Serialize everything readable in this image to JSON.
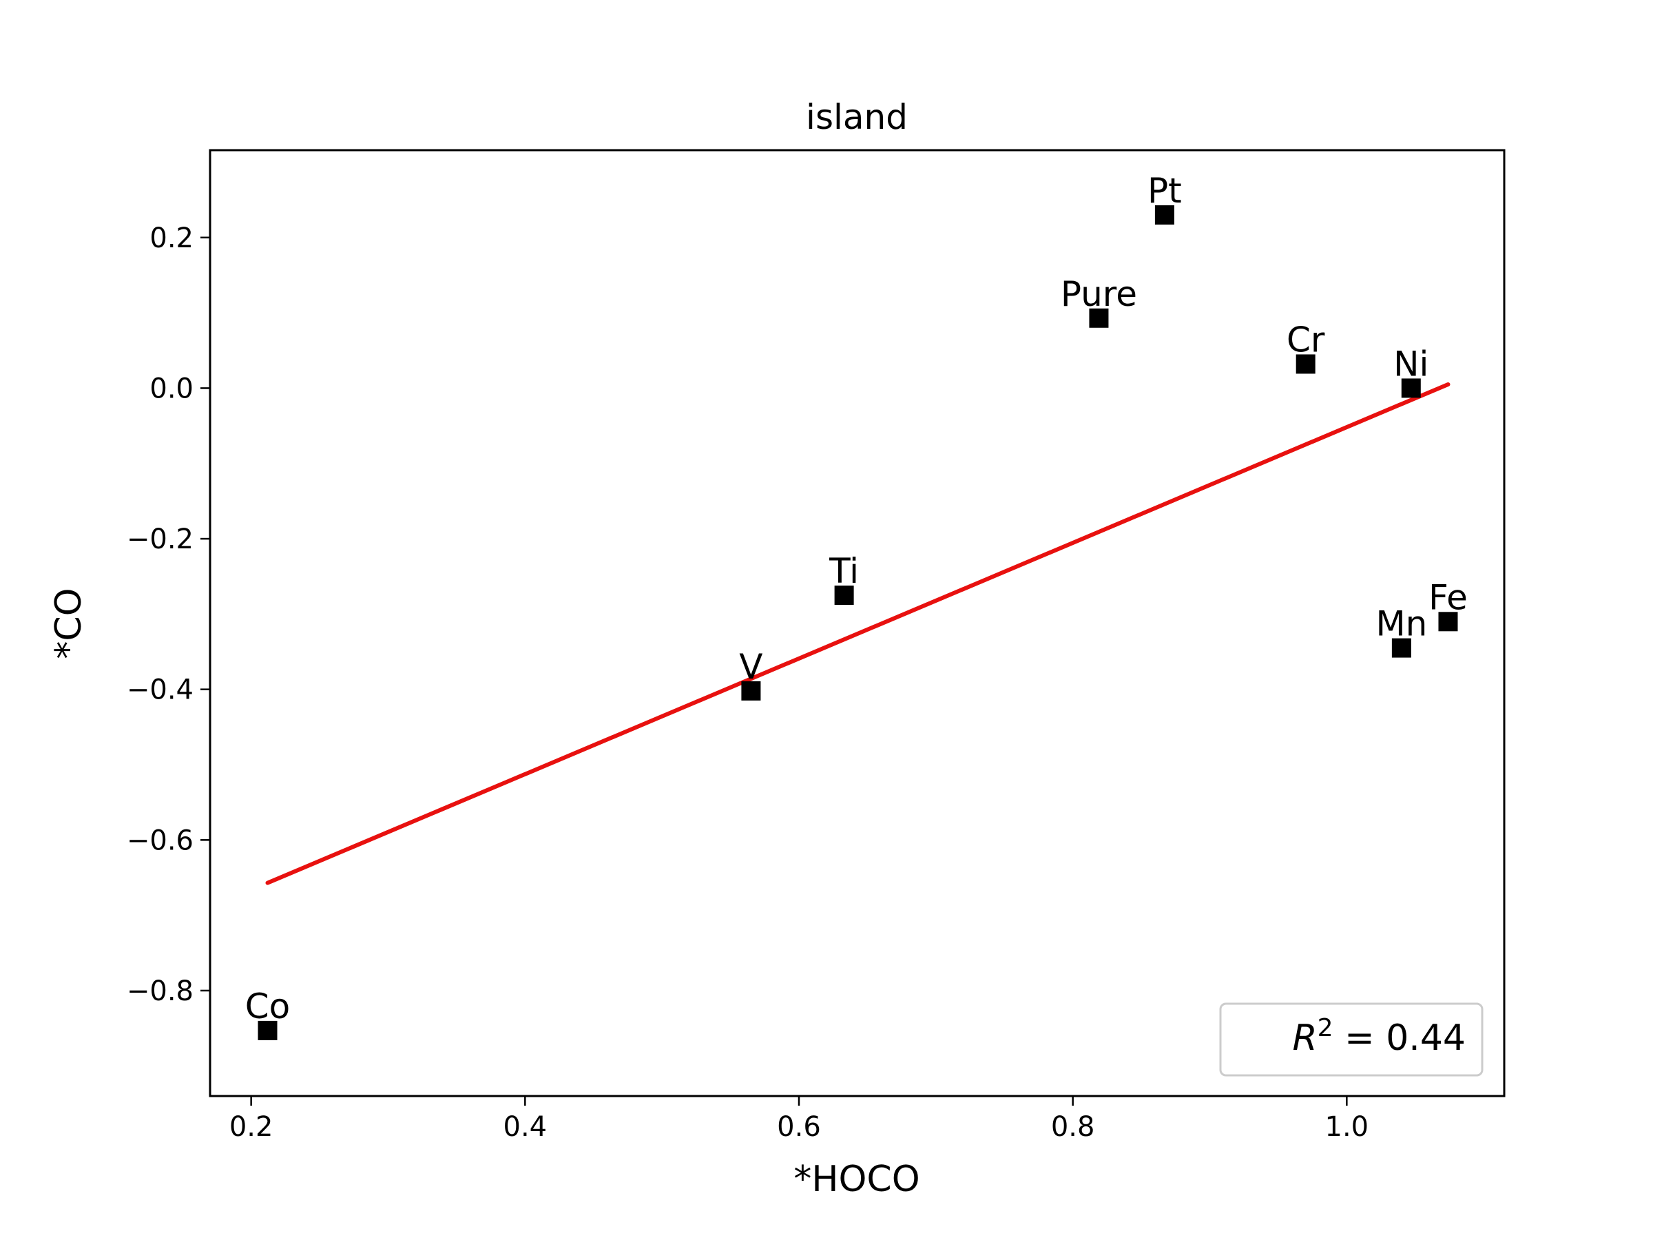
{
  "chart_data": {
    "type": "scatter",
    "title": "island",
    "xlabel": "*HOCO",
    "ylabel": "*CO",
    "xlim": [
      0.17,
      1.115
    ],
    "ylim": [
      -0.94,
      0.316
    ],
    "xticks": [
      0.2,
      0.4,
      0.6,
      0.8,
      1.0
    ],
    "xtick_labels": [
      "0.2",
      "0.4",
      "0.6",
      "0.8",
      "1.0"
    ],
    "yticks": [
      -0.8,
      -0.6,
      -0.4,
      -0.2,
      0.0,
      0.2
    ],
    "ytick_labels": [
      "−0.8",
      "−0.6",
      "−0.4",
      "−0.2",
      "0.0",
      "0.2"
    ],
    "grid": false,
    "marker": "square",
    "marker_color": "#000000",
    "points": [
      {
        "label": "Co",
        "x": 0.212,
        "y": -0.853
      },
      {
        "label": "V",
        "x": 0.565,
        "y": -0.402
      },
      {
        "label": "Ti",
        "x": 0.633,
        "y": -0.275
      },
      {
        "label": "Pure",
        "x": 0.819,
        "y": 0.093
      },
      {
        "label": "Pt",
        "x": 0.867,
        "y": 0.23
      },
      {
        "label": "Cr",
        "x": 0.97,
        "y": 0.032
      },
      {
        "label": "Ni",
        "x": 1.047,
        "y": 0.0
      },
      {
        "label": "Mn",
        "x": 1.04,
        "y": -0.345
      },
      {
        "label": "Fe",
        "x": 1.074,
        "y": -0.31
      }
    ],
    "fit_line": {
      "color": "#e8110f",
      "x": [
        0.212,
        1.074
      ],
      "y": [
        -0.657,
        0.005
      ]
    },
    "legend": {
      "text": "R² = 0.44",
      "placement": "lower-right"
    }
  }
}
